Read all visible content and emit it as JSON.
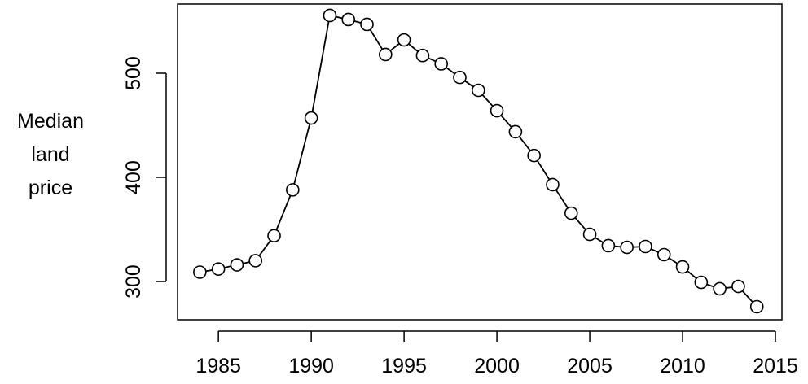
{
  "chart_data": {
    "type": "line",
    "ylabel": [
      "Median",
      "land",
      "price"
    ],
    "x": [
      1984,
      1985,
      1986,
      1987,
      1988,
      1989,
      1990,
      1991,
      1992,
      1993,
      1994,
      1995,
      1996,
      1997,
      1998,
      1999,
      2000,
      2001,
      2002,
      2003,
      2004,
      2005,
      2006,
      2007,
      2008,
      2009,
      2010,
      2011,
      2012,
      2013,
      2014
    ],
    "series": [
      {
        "color": "#000000",
        "values": [
          309,
          312,
          316,
          320,
          344,
          388,
          457,
          555.5,
          551.6,
          546.9,
          518,
          532,
          517,
          509,
          496,
          483.6,
          464,
          443.8,
          421,
          393,
          365.6,
          345.3,
          334.4,
          332.8,
          333.6,
          325.8,
          314,
          299.2,
          293,
          295.3,
          275.8
        ]
      }
    ],
    "xlim": [
      1982.8,
      2015.35
    ],
    "xticks": [
      1985,
      1990,
      1995,
      2000,
      2005,
      2010,
      2015
    ],
    "ylim": [
      263.3,
      566.4
    ],
    "yticks": [
      300,
      400,
      500
    ],
    "grid": false
  }
}
